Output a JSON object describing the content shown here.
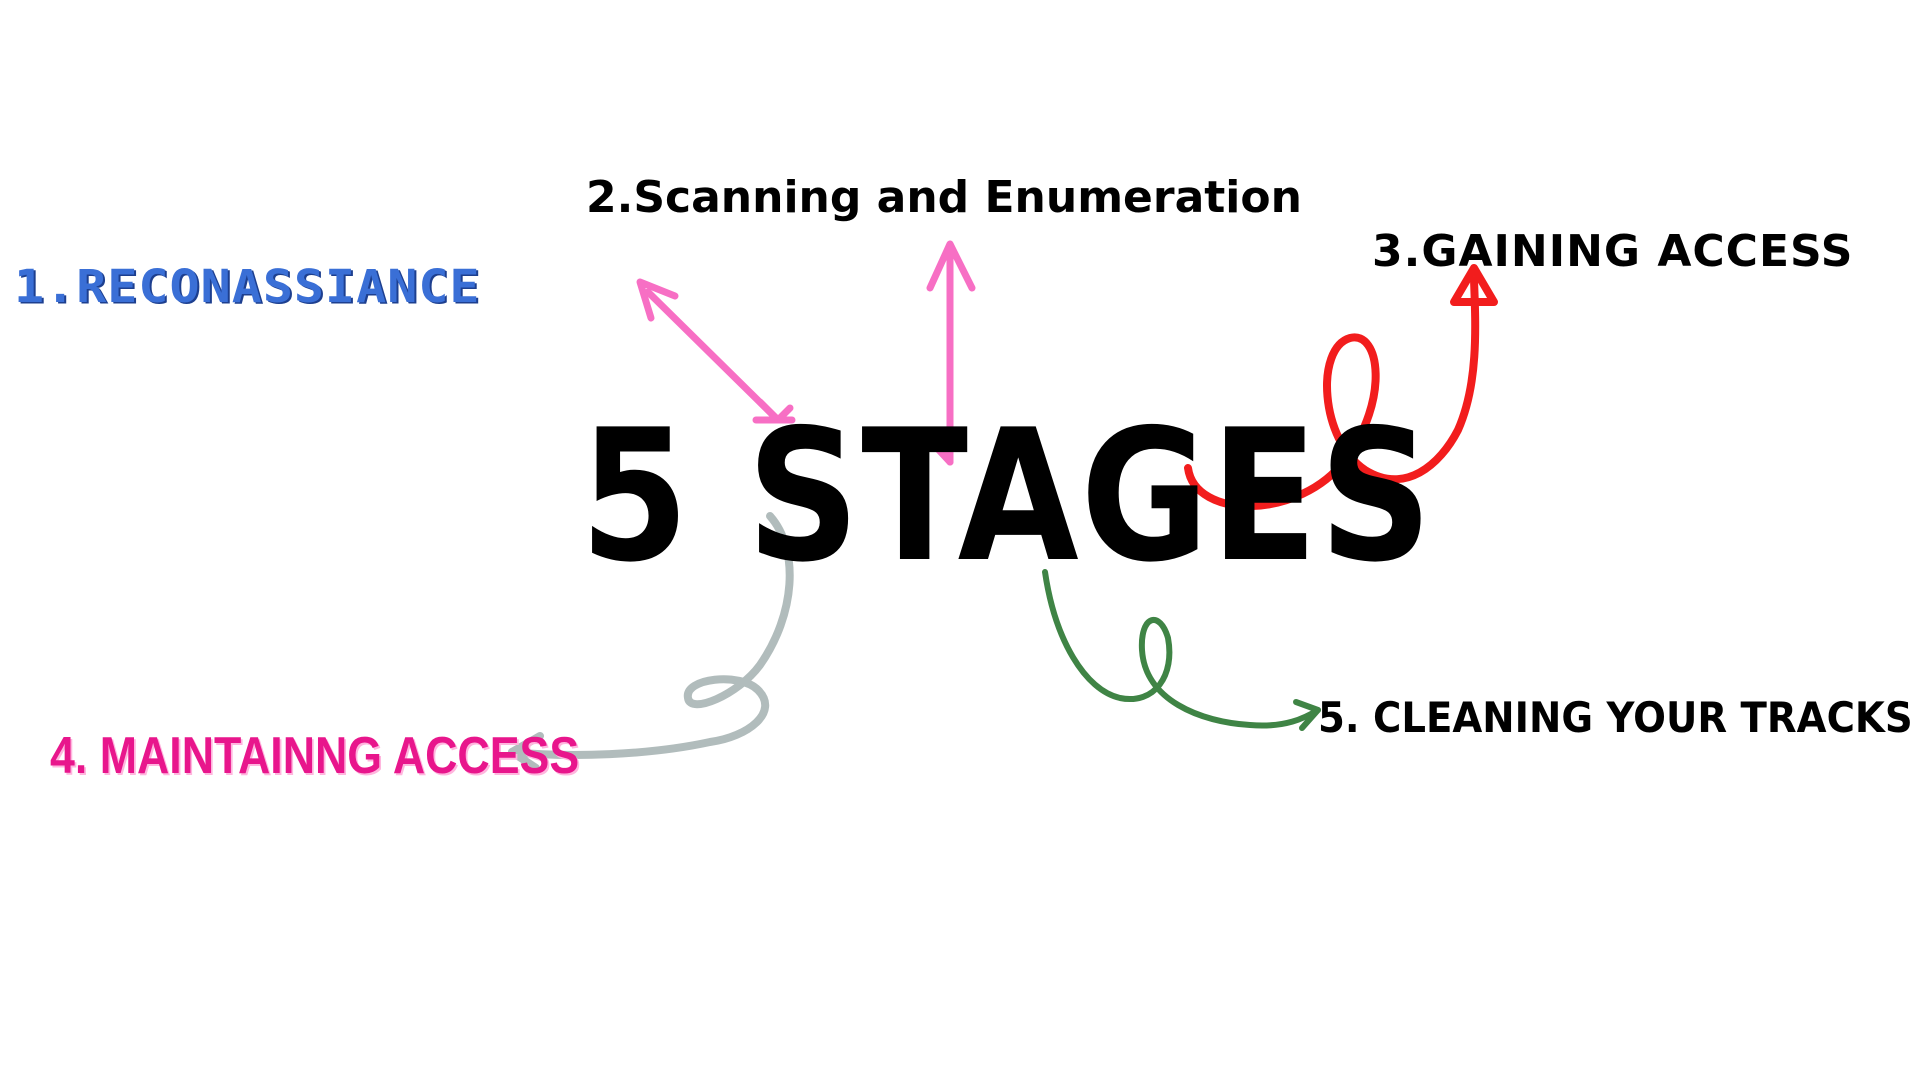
{
  "title": "5 STAGES",
  "stages": [
    {
      "label": "1.RECONASSIANCE",
      "color": "#3a6fd6"
    },
    {
      "label": "2.Scanning and Enumeration",
      "color": "#000000"
    },
    {
      "label": "3.GAINING ACCESS",
      "color": "#000000"
    },
    {
      "label": "4. MAINTAINNG ACCESS",
      "color": "#e8168c"
    },
    {
      "label": "5. CLEANING YOUR TRACKS",
      "color": "#000000"
    }
  ],
  "arrows": [
    {
      "to": "1.RECONASSIANCE",
      "color": "#f76fc4",
      "style": "double-headed straight"
    },
    {
      "to": "2.Scanning and Enumeration",
      "color": "#f76fc4",
      "style": "straight"
    },
    {
      "to": "3.GAINING ACCESS",
      "color": "#f21d1d",
      "style": "curly"
    },
    {
      "to": "4. MAINTAINNG ACCESS",
      "color": "#b1bcbc",
      "style": "curly"
    },
    {
      "to": "5. CLEANING YOUR TRACKS",
      "color": "#3f8445",
      "style": "curly"
    }
  ]
}
